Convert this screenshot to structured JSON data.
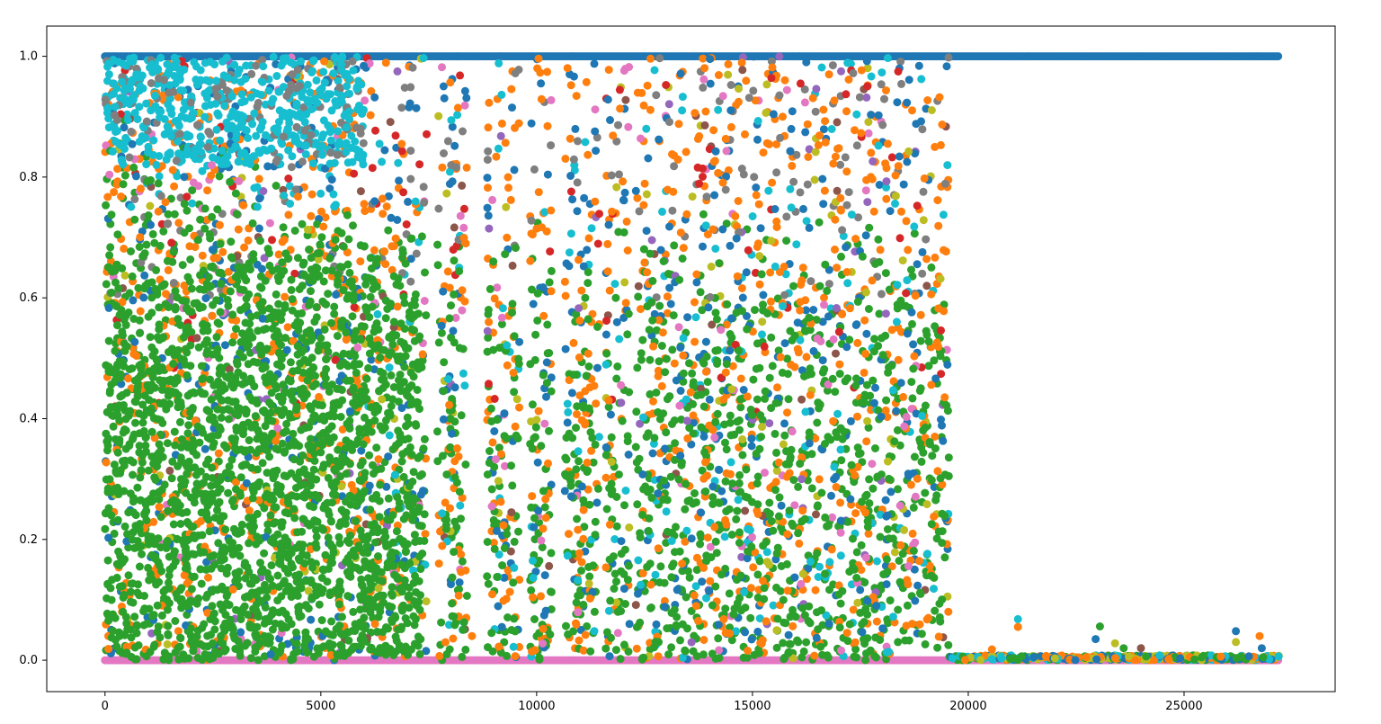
{
  "chart_data": {
    "type": "scatter",
    "title": "",
    "xlabel": "",
    "ylabel": "",
    "xlim": [
      -1350,
      28500
    ],
    "ylim": [
      -0.052,
      1.05
    ],
    "x_ticks": [
      0,
      5000,
      10000,
      15000,
      20000,
      25000
    ],
    "x_tick_labels": [
      "0",
      "5000",
      "10000",
      "15000",
      "20000",
      "25000"
    ],
    "y_ticks": [
      0.0,
      0.2,
      0.4,
      0.6,
      0.8,
      1.0
    ],
    "y_tick_labels": [
      "0.0",
      "0.2",
      "0.4",
      "0.6",
      "0.8",
      "1.0"
    ],
    "grid": false,
    "legend": "none",
    "x_max": 27200,
    "dense_region_end": 19550,
    "empty_gaps": [
      [
        7450,
        7700
      ],
      [
        8400,
        8850
      ],
      [
        9600,
        9850
      ],
      [
        10350,
        10650
      ],
      [
        11450,
        11600
      ],
      [
        12150,
        12300
      ]
    ],
    "series": [
      {
        "color": "#1f77b4",
        "pattern": "constant at 1.0 across full range, plus scattered points in dense region"
      },
      {
        "color": "#ff7f0e",
        "pattern": "scattered 0 to 1 in dense region, near 0 afterwards"
      },
      {
        "color": "#2ca02c",
        "pattern": "heavily concentrated 0 to 0.7 in dense region"
      },
      {
        "color": "#d62728",
        "pattern": "sparse scatter near top"
      },
      {
        "color": "#9467bd",
        "pattern": "sparse scatter"
      },
      {
        "color": "#8c564b",
        "pattern": "sparse scatter near top and bottom"
      },
      {
        "color": "#e377c2",
        "pattern": "constant at 0.0 across full range, plus scattered points"
      },
      {
        "color": "#7f7f7f",
        "pattern": "scatter near top-left"
      },
      {
        "color": "#bcbd22",
        "pattern": "sparse scatter"
      },
      {
        "color": "#17becf",
        "pattern": "concentrated 0.8 to 1.0 at x < 6000"
      }
    ],
    "tail_outliers": [
      {
        "x": 21150,
        "y": 0.068,
        "color": "#17becf"
      },
      {
        "x": 21150,
        "y": 0.055,
        "color": "#ff7f0e"
      },
      {
        "x": 22950,
        "y": 0.035,
        "color": "#1f77b4"
      },
      {
        "x": 23050,
        "y": 0.056,
        "color": "#2ca02c"
      },
      {
        "x": 23400,
        "y": 0.028,
        "color": "#bcbd22"
      },
      {
        "x": 23600,
        "y": 0.02,
        "color": "#2ca02c"
      },
      {
        "x": 24000,
        "y": 0.02,
        "color": "#8c564b"
      },
      {
        "x": 26200,
        "y": 0.048,
        "color": "#1f77b4"
      },
      {
        "x": 26200,
        "y": 0.03,
        "color": "#bcbd22"
      },
      {
        "x": 26750,
        "y": 0.04,
        "color": "#ff7f0e"
      },
      {
        "x": 26800,
        "y": 0.02,
        "color": "#1f77b4"
      },
      {
        "x": 20550,
        "y": 0.018,
        "color": "#ff7f0e"
      },
      {
        "x": 8500,
        "y": 0.04,
        "color": "#ff7f0e"
      },
      {
        "x": 12150,
        "y": 0.06,
        "color": "#1f77b4"
      }
    ]
  }
}
